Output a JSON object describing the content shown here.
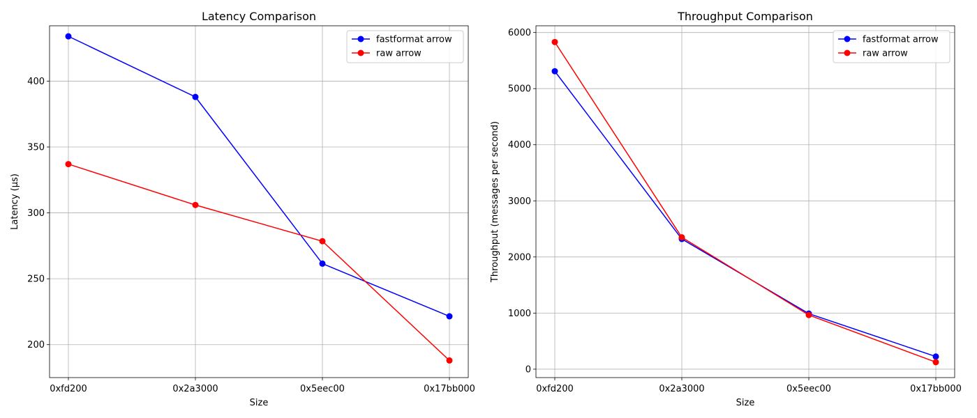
{
  "chart_data": [
    {
      "type": "line",
      "title": "Latency Comparison",
      "xlabel": "Size",
      "ylabel": "Latency (µs)",
      "categories": [
        "0xfd200",
        "0x2a3000",
        "0x5eec00",
        "0x17bb000"
      ],
      "ylim": [
        175,
        442
      ],
      "yticks": [
        200,
        250,
        300,
        350,
        400
      ],
      "grid": true,
      "legend_position": "top-right",
      "series": [
        {
          "name": "fastformat arrow",
          "color": "#0000ff",
          "values": [
            434,
            388,
            261.5,
            221.5
          ]
        },
        {
          "name": "raw arrow",
          "color": "#ff0000",
          "values": [
            337,
            306,
            278.5,
            188
          ]
        }
      ]
    },
    {
      "type": "line",
      "title": "Throughput Comparison",
      "xlabel": "Size",
      "ylabel": "Throughput (messages per second)",
      "categories": [
        "0xfd200",
        "0x2a3000",
        "0x5eec00",
        "0x17bb000"
      ],
      "ylim": [
        -150,
        6120
      ],
      "yticks": [
        0,
        1000,
        2000,
        3000,
        4000,
        5000,
        6000
      ],
      "grid": true,
      "legend_position": "top-right",
      "series": [
        {
          "name": "fastformat arrow",
          "color": "#0000ff",
          "values": [
            5310,
            2320,
            990,
            225
          ]
        },
        {
          "name": "raw arrow",
          "color": "#ff0000",
          "values": [
            5830,
            2350,
            965,
            125
          ]
        }
      ]
    }
  ]
}
